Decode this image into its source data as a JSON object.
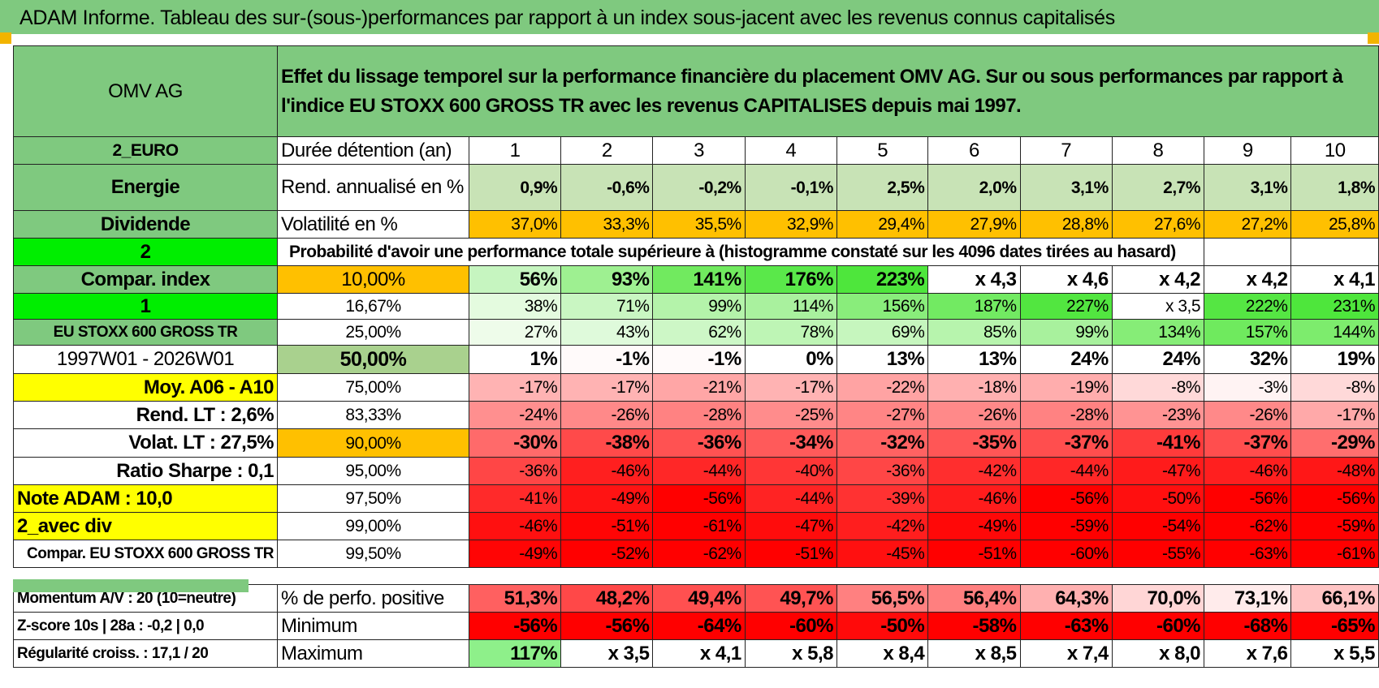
{
  "title": "ADAM Informe. Tableau des sur-(sous-)performances par rapport à un index sous-jacent avec les revenus connus capitalisés",
  "side": {
    "stock": "OMV AG",
    "currency": "2_EURO",
    "sector": "Energie",
    "style": "Dividende",
    "n2": "2",
    "compar_index": "Compar. index",
    "n1": "1",
    "index_name": "EU STOXX 600 GROSS TR",
    "period": "1997W01 - 2026W01",
    "moy": "Moy. A06 - A10",
    "rend_lt": "Rend. LT :    2,6%",
    "volat_lt": "Volat. LT :    27,5%",
    "sharpe": "Ratio Sharpe :     0,1",
    "note": "Note ADAM : 10,0",
    "avec_div": "2_avec div",
    "compar": "Compar. EU STOXX 600 GROSS TR"
  },
  "header_text": "Effet du lissage temporel sur la performance financière du placement OMV AG. Sur ou sous performances par rapport à l'indice EU STOXX 600 GROSS TR avec les revenus CAPITALISES depuis mai 1997.",
  "duree": {
    "label": "Durée détention (an)",
    "years": [
      "1",
      "2",
      "3",
      "4",
      "5",
      "6",
      "7",
      "8",
      "9",
      "10"
    ]
  },
  "rend": {
    "label": "Rend. annualisé en %",
    "values": [
      "0,9%",
      "-0,6%",
      "-0,2%",
      "-0,1%",
      "2,5%",
      "2,0%",
      "3,1%",
      "2,7%",
      "3,1%",
      "1,8%"
    ]
  },
  "volat": {
    "label": "Volatilité en %",
    "values": [
      "37,0%",
      "33,3%",
      "35,5%",
      "32,9%",
      "29,4%",
      "27,9%",
      "28,8%",
      "27,6%",
      "27,2%",
      "25,8%"
    ]
  },
  "prob_title": "Probabilité d'avoir une performance totale supérieure à (histogramme constaté sur les 4096 dates tirées au hasard)",
  "prob_rows": [
    {
      "p": "10,00%",
      "v": [
        "56%",
        "93%",
        "141%",
        "176%",
        "223%",
        "x 4,3",
        "x 4,6",
        "x 4,2",
        "x 4,2",
        "x 4,1"
      ]
    },
    {
      "p": "16,67%",
      "v": [
        "38%",
        "71%",
        "99%",
        "114%",
        "156%",
        "187%",
        "227%",
        "x 3,5",
        "222%",
        "231%"
      ]
    },
    {
      "p": "25,00%",
      "v": [
        "27%",
        "43%",
        "62%",
        "78%",
        "69%",
        "85%",
        "99%",
        "134%",
        "157%",
        "144%"
      ]
    },
    {
      "p": "50,00%",
      "v": [
        "1%",
        "-1%",
        "-1%",
        "0%",
        "13%",
        "13%",
        "24%",
        "24%",
        "32%",
        "19%"
      ]
    },
    {
      "p": "75,00%",
      "v": [
        "-17%",
        "-17%",
        "-21%",
        "-17%",
        "-22%",
        "-18%",
        "-19%",
        "-8%",
        "-3%",
        "-8%"
      ]
    },
    {
      "p": "83,33%",
      "v": [
        "-24%",
        "-26%",
        "-28%",
        "-25%",
        "-27%",
        "-26%",
        "-28%",
        "-23%",
        "-26%",
        "-17%"
      ]
    },
    {
      "p": "90,00%",
      "v": [
        "-30%",
        "-38%",
        "-36%",
        "-34%",
        "-32%",
        "-35%",
        "-37%",
        "-41%",
        "-37%",
        "-29%"
      ]
    },
    {
      "p": "95,00%",
      "v": [
        "-36%",
        "-46%",
        "-44%",
        "-40%",
        "-36%",
        "-42%",
        "-44%",
        "-47%",
        "-46%",
        "-48%"
      ]
    },
    {
      "p": "97,50%",
      "v": [
        "-41%",
        "-49%",
        "-56%",
        "-44%",
        "-39%",
        "-46%",
        "-56%",
        "-50%",
        "-56%",
        "-56%"
      ]
    },
    {
      "p": "99,00%",
      "v": [
        "-46%",
        "-51%",
        "-61%",
        "-47%",
        "-42%",
        "-49%",
        "-59%",
        "-54%",
        "-62%",
        "-59%"
      ]
    },
    {
      "p": "99,50%",
      "v": [
        "-49%",
        "-52%",
        "-62%",
        "-51%",
        "-45%",
        "-51%",
        "-60%",
        "-55%",
        "-63%",
        "-61%"
      ]
    }
  ],
  "bottom": {
    "momentum": "Momentum A/V : 20 (10=neutre)",
    "zscore": "Z-score 10s | 28a : -0,2 | 0,0",
    "regul": "Régularité croiss. : 17,1 / 20",
    "pos": {
      "label": "% de perfo. positive",
      "values": [
        "51,3%",
        "48,2%",
        "49,4%",
        "49,7%",
        "56,5%",
        "56,4%",
        "64,3%",
        "70,0%",
        "73,1%",
        "66,1%"
      ]
    },
    "min": {
      "label": "Minimum",
      "values": [
        "-56%",
        "-56%",
        "-64%",
        "-60%",
        "-50%",
        "-58%",
        "-63%",
        "-60%",
        "-68%",
        "-65%"
      ]
    },
    "max": {
      "label": "Maximum",
      "values": [
        "117%",
        "x 3,5",
        "x 4,1",
        "x 5,8",
        "x 8,4",
        "x 8,5",
        "x 7,4",
        "x 8,0",
        "x 7,6",
        "x 5,5"
      ]
    }
  },
  "colors": {
    "green_header": "#7fc97f",
    "bright_green": "#00ee00",
    "yellow": "#ffff00",
    "orange": "#ffc000",
    "red": "#ff0000"
  }
}
